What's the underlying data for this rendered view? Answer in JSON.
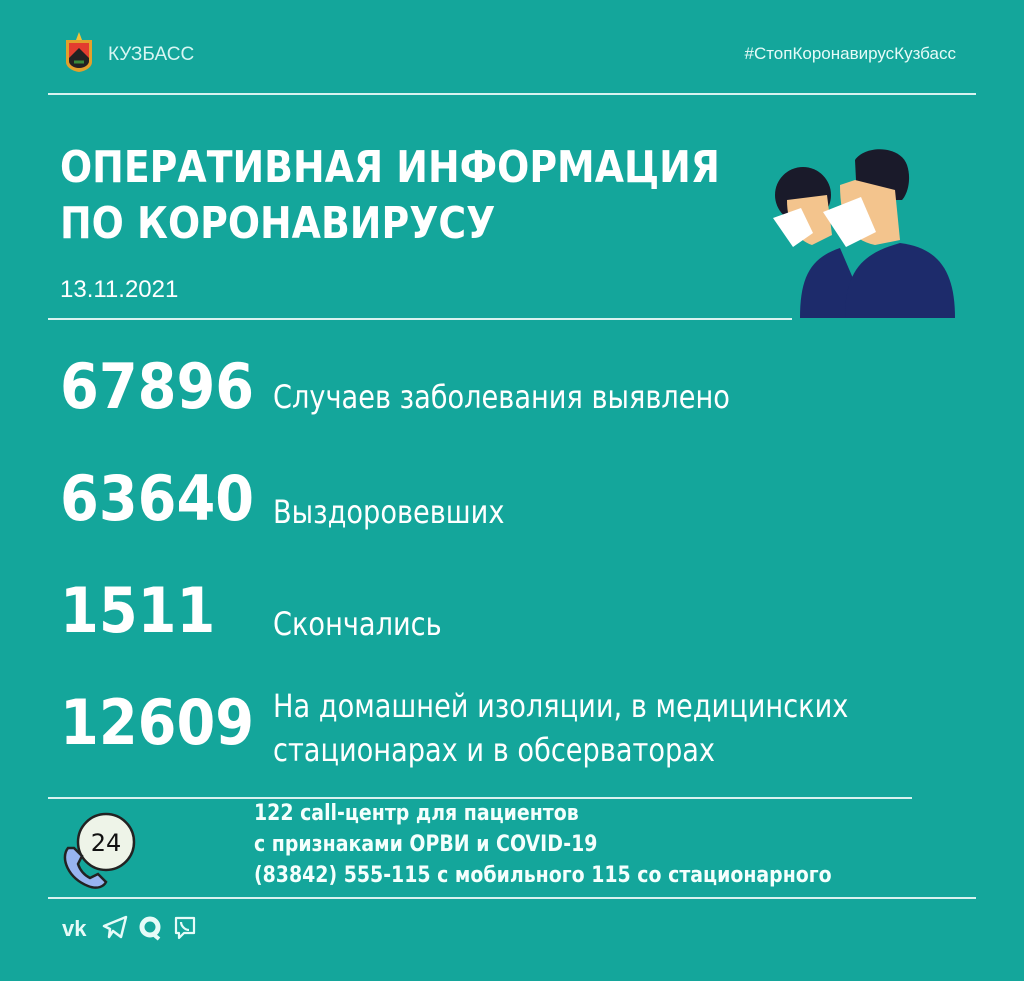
{
  "header": {
    "brand": "КУЗБАСС",
    "hashtag": "#СтопКоронавирусКузбасс"
  },
  "title": {
    "line1": "ОПЕРАТИВНАЯ ИНФОРМАЦИЯ",
    "line2": "ПО КОРОНАВИРУСУ",
    "date": "13.11.2021"
  },
  "stats": [
    {
      "value": "67896",
      "label": "Случаев заболевания выявлено"
    },
    {
      "value": "63640",
      "label": "Выздоровевших"
    },
    {
      "value": "1511",
      "label": "Скончались"
    },
    {
      "value": "12609",
      "label_line1": "На домашней изоляции, в медицинских",
      "label_line2": "стационарах и в обсерваторах"
    }
  ],
  "contact": {
    "icon_text": "24",
    "line1": "122  call-центр для пациентов",
    "line2": "с признаками ОРВИ и COVID-19",
    "line3": "(83842) 555-115 с мобильного 115 со стационарного"
  },
  "social": [
    "vk-icon",
    "telegram-icon",
    "ok-icon",
    "viber-icon"
  ],
  "colors": {
    "background": "#14a69b",
    "text": "#ffffff"
  }
}
